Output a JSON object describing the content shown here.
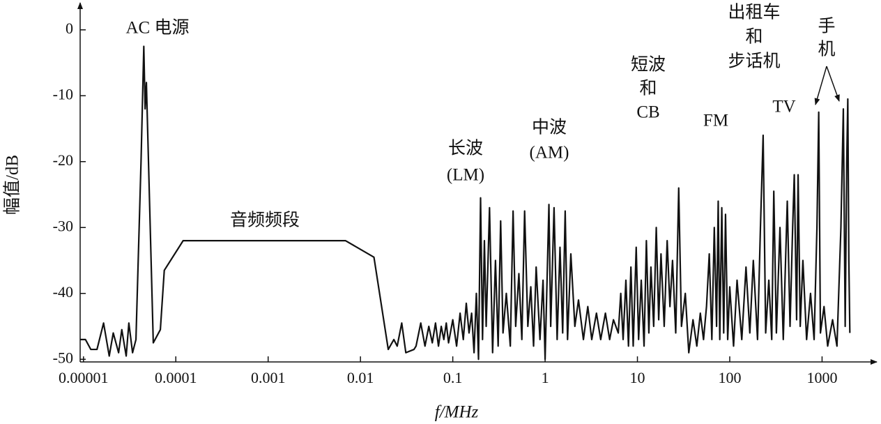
{
  "chart_data": {
    "type": "line",
    "x_label": "f/MHz",
    "y_label": "幅值/dB",
    "log_x": true,
    "color": "#111111",
    "xlim": [
      9.2e-06,
      4200
    ],
    "ylim": [
      -50.4,
      4
    ],
    "xticks": [
      1e-05,
      0.0001,
      0.001,
      0.01,
      0.1,
      1,
      10,
      100,
      1000
    ],
    "yticks": [
      0,
      -10,
      -20,
      -30,
      -40,
      -50
    ],
    "annotations": [
      "AC 电源",
      "音频频段",
      "长波",
      "(LM)",
      "中波",
      "(AM)",
      "短波",
      "和",
      "CB",
      "FM",
      "出租车",
      "和",
      "步话机",
      "TV",
      "手",
      "机"
    ],
    "x": [
      9.2e-06,
      1.05e-05,
      1.2e-05,
      1.4e-05,
      1.65e-05,
      1.9e-05,
      2.1e-05,
      2.4e-05,
      2.6e-05,
      2.9e-05,
      3.1e-05,
      3.4e-05,
      3.7e-05,
      4.2e-05,
      4.5e-05,
      4.65e-05,
      4.8e-05,
      5.7e-05,
      6.8e-05,
      7.5e-05,
      0.00012,
      0.0069,
      0.014,
      0.02,
      0.023,
      0.025,
      0.028,
      0.031,
      0.038,
      0.04,
      0.045,
      0.05,
      0.055,
      0.06,
      0.065,
      0.07,
      0.075,
      0.08,
      0.085,
      0.09,
      0.1,
      0.11,
      0.12,
      0.13,
      0.14,
      0.15,
      0.16,
      0.17,
      0.18,
      0.19,
      0.2,
      0.21,
      0.22,
      0.23,
      0.25,
      0.27,
      0.29,
      0.31,
      0.33,
      0.35,
      0.38,
      0.42,
      0.45,
      0.48,
      0.52,
      0.56,
      0.6,
      0.65,
      0.7,
      0.75,
      0.8,
      0.88,
      0.95,
      1.0,
      1.1,
      1.15,
      1.25,
      1.35,
      1.45,
      1.55,
      1.65,
      1.75,
      1.9,
      2.1,
      2.3,
      2.6,
      2.9,
      3.2,
      3.6,
      4.0,
      4.5,
      5.0,
      5.5,
      6.2,
      6.6,
      7.0,
      7.5,
      8.0,
      8.5,
      9.0,
      9.7,
      10.3,
      11,
      11.8,
      12.5,
      13.3,
      14,
      15,
      16,
      17,
      18,
      19.5,
      21,
      22.5,
      24,
      26,
      28,
      30,
      33,
      36,
      40,
      44,
      48,
      52,
      56,
      60,
      64,
      68,
      72,
      75,
      78,
      82,
      86,
      90,
      95,
      100,
      110,
      120,
      135,
      150,
      165,
      180,
      200,
      215,
      230,
      245,
      265,
      285,
      300,
      320,
      350,
      380,
      420,
      450,
      480,
      500,
      530,
      550,
      580,
      620,
      680,
      750,
      820,
      880,
      920,
      960,
      1050,
      1150,
      1300,
      1450,
      1600,
      1700,
      1780,
      1850,
      1900,
      1950,
      2000
    ],
    "values": [
      -47,
      -47,
      -48.5,
      -48.5,
      -44.5,
      -49.5,
      -46,
      -49,
      -45.5,
      -49.5,
      -44.5,
      -49,
      -47,
      -20,
      -2.5,
      -12,
      -8,
      -47.5,
      -45.5,
      -36.5,
      -32,
      -32,
      -34.5,
      -48.5,
      -47,
      -48,
      -44.5,
      -49,
      -48.5,
      -48,
      -44.5,
      -48,
      -45,
      -47.5,
      -44.5,
      -48,
      -45,
      -47,
      -44.5,
      -47.5,
      -44,
      -48,
      -43,
      -47,
      -41.5,
      -46,
      -43,
      -49,
      -40,
      -50,
      -25.5,
      -47,
      -32,
      -45,
      -27,
      -49,
      -35,
      -48,
      -29,
      -46,
      -40,
      -48,
      -27.5,
      -45,
      -37,
      -47,
      -27.5,
      -45,
      -39,
      -48,
      -36,
      -47,
      -38,
      -50,
      -26.5,
      -45,
      -27,
      -47,
      -33,
      -46,
      -27.5,
      -47,
      -34,
      -45,
      -41,
      -47,
      -42,
      -47,
      -43,
      -47,
      -43,
      -47,
      -44,
      -46,
      -40,
      -47,
      -38,
      -48,
      -36,
      -48,
      -33,
      -47,
      -38,
      -48,
      -32,
      -46,
      -36,
      -45,
      -30,
      -44,
      -34,
      -45,
      -32,
      -42,
      -35,
      -46,
      -24,
      -45,
      -40,
      -49,
      -44,
      -48,
      -43,
      -47,
      -42,
      -34,
      -47,
      -30,
      -45,
      -26,
      -47,
      -27,
      -46,
      -28,
      -47,
      -39,
      -48,
      -38,
      -47,
      -36,
      -46,
      -35,
      -47,
      -30,
      -16,
      -46,
      -38,
      -47,
      -24.5,
      -46,
      -30,
      -47,
      -26,
      -45,
      -30,
      -22,
      -44,
      -22,
      -45,
      -35,
      -47,
      -40,
      -47,
      -30,
      -12.5,
      -46,
      -42,
      -48,
      -44,
      -48,
      -30,
      -12,
      -45,
      -20,
      -10.5,
      -35,
      -46
    ]
  }
}
